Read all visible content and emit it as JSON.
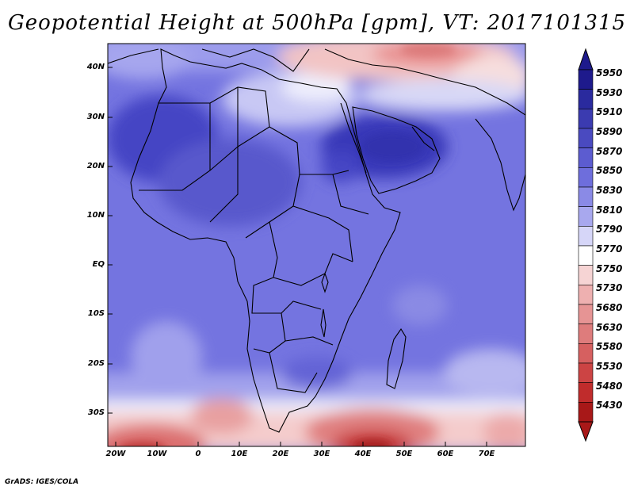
{
  "title": "Geopotential Height at 500hPa [gpm], VT: 2017101315",
  "footer": "GrADS: IGES/COLA",
  "map": {
    "lat_labels": [
      "40N",
      "30N",
      "20N",
      "10N",
      "EQ",
      "10S",
      "20S",
      "30S"
    ],
    "lon_labels": [
      "20W",
      "10W",
      "0",
      "10E",
      "20E",
      "30E",
      "40E",
      "50E",
      "60E",
      "70E"
    ]
  },
  "colorbar": {
    "levels": [
      "5950",
      "5930",
      "5910",
      "5890",
      "5870",
      "5850",
      "5830",
      "5810",
      "5790",
      "5770",
      "5750",
      "5730",
      "5680",
      "5630",
      "5580",
      "5530",
      "5480",
      "5430"
    ],
    "colors": [
      "#1e1a8c",
      "#2a2a9e",
      "#3b3bb0",
      "#4a4ac0",
      "#5c5cd0",
      "#6e6edc",
      "#8a8ae6",
      "#a8a8ee",
      "#d6d6f8",
      "#ffffff",
      "#f6d4d4",
      "#eeb0b0",
      "#e69494",
      "#de7c7c",
      "#d66060",
      "#cc4444",
      "#c02c2c",
      "#a81818"
    ]
  },
  "colors": {
    "ocean_main": "#7373e0",
    "high_core": "#3b3bc0",
    "low_red": "#c83030"
  }
}
